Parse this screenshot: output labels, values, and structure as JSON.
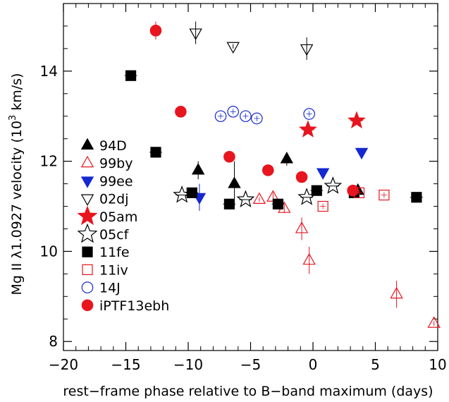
{
  "chart_data": {
    "type": "scatter",
    "xlabel": "rest−frame phase relative to B−band maximum (days)",
    "ylabel_parts": [
      "Mg II λ1.0927 velocity (10",
      "3",
      " km/s)"
    ],
    "xlim": [
      -20,
      10
    ],
    "ylim": [
      7.8,
      15.5
    ],
    "x_ticks": [
      -20,
      -15,
      -10,
      -5,
      0,
      5,
      10
    ],
    "x_tick_labels": [
      "−20",
      "−15",
      "−10",
      "−5",
      "0",
      "5",
      "10"
    ],
    "y_ticks": [
      8,
      10,
      12,
      14
    ],
    "y_tick_labels": [
      "8",
      "10",
      "12",
      "14"
    ],
    "grid": false,
    "legend_position": "left",
    "series": [
      {
        "name": "94D",
        "marker": "triangle-up",
        "filled": true,
        "color": "#000000",
        "points": [
          {
            "x": -9.2,
            "y": 11.8,
            "yerr": 0.2
          },
          {
            "x": -6.3,
            "y": 11.5,
            "yerr": 0.5
          },
          {
            "x": -2.1,
            "y": 12.05,
            "yerr": 0.15
          },
          {
            "x": 3.6,
            "y": 11.35,
            "yerr": 0.1
          }
        ]
      },
      {
        "name": "99by",
        "marker": "triangle-up",
        "filled": false,
        "color": "#e8141e",
        "points": [
          {
            "x": -4.3,
            "y": 11.15,
            "yerr": 0.05
          },
          {
            "x": -3.2,
            "y": 11.2,
            "yerr": 0.1
          },
          {
            "x": -2.3,
            "y": 10.95,
            "yerr": 0.1
          },
          {
            "x": -0.9,
            "y": 10.5,
            "yerr": 0.25
          },
          {
            "x": -0.3,
            "y": 9.8,
            "yerr": 0.3
          },
          {
            "x": 6.7,
            "y": 9.05,
            "yerr": 0.3
          },
          {
            "x": 9.7,
            "y": 8.4,
            "yerr": 0.05
          }
        ]
      },
      {
        "name": "99ee",
        "marker": "triangle-down",
        "filled": true,
        "color": "#1428d2",
        "points": [
          {
            "x": -9.1,
            "y": 11.2,
            "yerr": 0.3
          },
          {
            "x": 0.8,
            "y": 11.75,
            "yerr": 0.05
          },
          {
            "x": 3.9,
            "y": 12.2,
            "yerr": 0.05
          }
        ]
      },
      {
        "name": "02dj",
        "marker": "triangle-down",
        "filled": false,
        "color": "#000000",
        "points": [
          {
            "x": -9.4,
            "y": 14.85,
            "yerr": 0.25
          },
          {
            "x": -6.4,
            "y": 14.55,
            "yerr": 0.05
          },
          {
            "x": -0.5,
            "y": 14.5,
            "yerr": 0.25
          }
        ]
      },
      {
        "name": "05am",
        "marker": "star",
        "filled": true,
        "color": "#e8141e",
        "points": [
          {
            "x": -0.4,
            "y": 12.7,
            "xerr": 0.5
          },
          {
            "x": 3.5,
            "y": 12.9,
            "xerr": 0.5
          }
        ]
      },
      {
        "name": "05cf",
        "marker": "star",
        "filled": false,
        "color": "#000000",
        "points": [
          {
            "x": -10.5,
            "y": 11.25,
            "xerr": 0.5
          },
          {
            "x": -5.4,
            "y": 11.15,
            "xerr": 0.5
          },
          {
            "x": -0.5,
            "y": 11.2,
            "xerr": 0.5
          },
          {
            "x": 1.6,
            "y": 11.45,
            "xerr": 0.5
          }
        ]
      },
      {
        "name": "11fe",
        "marker": "square",
        "filled": true,
        "color": "#000000",
        "points": [
          {
            "x": -14.6,
            "y": 13.9,
            "xerr": 0.5
          },
          {
            "x": -12.6,
            "y": 12.2,
            "xerr": 0.5
          },
          {
            "x": -9.7,
            "y": 11.3,
            "xerr": 0.5
          },
          {
            "x": -6.7,
            "y": 11.05,
            "xerr": 0.5
          },
          {
            "x": -2.8,
            "y": 11.05,
            "xerr": 0.5
          },
          {
            "x": 0.3,
            "y": 11.35,
            "xerr": 0.5
          },
          {
            "x": 3.3,
            "y": 11.3,
            "xerr": 0.5
          },
          {
            "x": 8.3,
            "y": 11.2,
            "xerr": 0.5
          }
        ]
      },
      {
        "name": "11iv",
        "marker": "square",
        "filled": false,
        "color": "#e8141e",
        "points": [
          {
            "x": 0.8,
            "y": 11.0
          },
          {
            "x": 3.7,
            "y": 11.3
          },
          {
            "x": 5.7,
            "y": 11.25
          }
        ]
      },
      {
        "name": "14J",
        "marker": "circle",
        "filled": false,
        "color": "#1428d2",
        "points": [
          {
            "x": -7.4,
            "y": 13.0
          },
          {
            "x": -6.4,
            "y": 13.1
          },
          {
            "x": -5.4,
            "y": 13.0
          },
          {
            "x": -4.5,
            "y": 12.95
          },
          {
            "x": -0.3,
            "y": 13.05
          }
        ]
      },
      {
        "name": "iPTF13ebh",
        "marker": "circle",
        "filled": true,
        "color": "#e8141e",
        "points": [
          {
            "x": -12.6,
            "y": 14.9,
            "yerr": 0.2
          },
          {
            "x": -10.6,
            "y": 13.1
          },
          {
            "x": -6.7,
            "y": 12.1
          },
          {
            "x": -3.6,
            "y": 11.8
          },
          {
            "x": -0.9,
            "y": 11.65
          },
          {
            "x": 3.2,
            "y": 11.35
          }
        ]
      }
    ]
  }
}
